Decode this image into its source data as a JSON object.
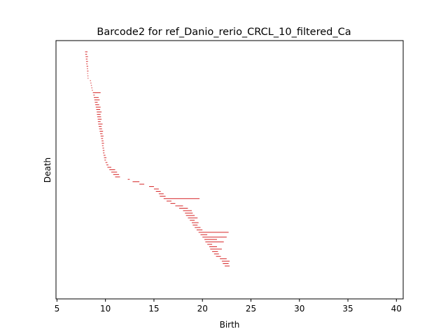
{
  "chart_data": {
    "type": "barcode",
    "title": "Barcode2 for ref_Danio_rerio_CRCL_10_filtered_Ca",
    "xlabel": "Birth",
    "ylabel": "Death",
    "xlim": [
      4.9,
      40.7
    ],
    "xticks": [
      5,
      10,
      15,
      20,
      25,
      30,
      35,
      40
    ],
    "xtick_labels": [
      "5",
      "10",
      "15",
      "20",
      "25",
      "30",
      "35",
      "40"
    ],
    "y_ticks_visible": false,
    "bar_color": "#d62728",
    "bars_note_count": 0,
    "bars": [
      [
        7.9,
        8.15
      ],
      [
        7.92,
        8.1
      ],
      [
        7.95,
        8.2
      ],
      [
        7.98,
        8.15
      ],
      [
        8.0,
        8.2
      ],
      [
        8.02,
        8.15
      ],
      [
        8.05,
        8.22
      ],
      [
        8.08,
        8.2
      ],
      [
        8.1,
        8.25
      ],
      [
        8.12,
        8.2
      ],
      [
        8.14,
        8.24
      ],
      [
        8.16,
        8.25
      ],
      [
        8.4,
        8.5
      ],
      [
        8.45,
        8.55
      ],
      [
        8.5,
        8.6
      ],
      [
        8.55,
        8.65
      ],
      [
        8.6,
        8.7
      ],
      [
        8.7,
        9.5
      ],
      [
        8.75,
        8.9
      ],
      [
        8.8,
        9.3
      ],
      [
        8.85,
        9.4
      ],
      [
        8.9,
        9.2
      ],
      [
        8.95,
        9.35
      ],
      [
        9.0,
        9.5
      ],
      [
        9.05,
        9.45
      ],
      [
        9.1,
        9.6
      ],
      [
        9.12,
        9.5
      ],
      [
        9.15,
        9.55
      ],
      [
        9.2,
        9.6
      ],
      [
        9.22,
        9.5
      ],
      [
        9.25,
        9.7
      ],
      [
        9.3,
        9.6
      ],
      [
        9.35,
        9.65
      ],
      [
        9.4,
        9.75
      ],
      [
        9.45,
        9.7
      ],
      [
        9.5,
        9.8
      ],
      [
        9.55,
        9.75
      ],
      [
        9.6,
        9.8
      ],
      [
        9.62,
        9.85
      ],
      [
        9.65,
        9.8
      ],
      [
        9.7,
        9.85
      ],
      [
        9.72,
        9.9
      ],
      [
        9.75,
        9.9
      ],
      [
        9.8,
        10.0
      ],
      [
        9.85,
        10.1
      ],
      [
        9.9,
        10.05
      ],
      [
        10.0,
        10.2
      ],
      [
        10.1,
        10.3
      ],
      [
        10.2,
        10.6
      ],
      [
        10.4,
        11.0
      ],
      [
        10.6,
        11.2
      ],
      [
        10.8,
        11.4
      ],
      [
        11.0,
        11.5
      ],
      [
        12.3,
        12.5
      ],
      [
        12.8,
        13.5
      ],
      [
        13.5,
        14.0
      ],
      [
        14.5,
        15.0
      ],
      [
        15.0,
        15.5
      ],
      [
        15.2,
        15.7
      ],
      [
        15.5,
        16.0
      ],
      [
        15.6,
        16.2
      ],
      [
        16.0,
        19.7
      ],
      [
        16.3,
        16.8
      ],
      [
        16.7,
        17.2
      ],
      [
        17.2,
        18.0
      ],
      [
        17.6,
        18.5
      ],
      [
        18.0,
        18.9
      ],
      [
        18.2,
        19.0
      ],
      [
        18.3,
        19.2
      ],
      [
        18.5,
        19.5
      ],
      [
        18.7,
        19.2
      ],
      [
        18.9,
        19.6
      ],
      [
        19.0,
        19.5
      ],
      [
        19.2,
        19.8
      ],
      [
        19.4,
        20.0
      ],
      [
        19.6,
        22.7
      ],
      [
        19.8,
        20.5
      ],
      [
        20.0,
        22.5
      ],
      [
        20.2,
        21.5
      ],
      [
        20.3,
        22.2
      ],
      [
        20.5,
        21.0
      ],
      [
        20.7,
        21.5
      ],
      [
        20.8,
        22.0
      ],
      [
        21.0,
        21.6
      ],
      [
        21.2,
        21.7
      ],
      [
        21.4,
        21.9
      ],
      [
        21.8,
        22.5
      ],
      [
        22.0,
        22.8
      ],
      [
        22.1,
        22.7
      ],
      [
        22.3,
        22.8
      ]
    ]
  }
}
